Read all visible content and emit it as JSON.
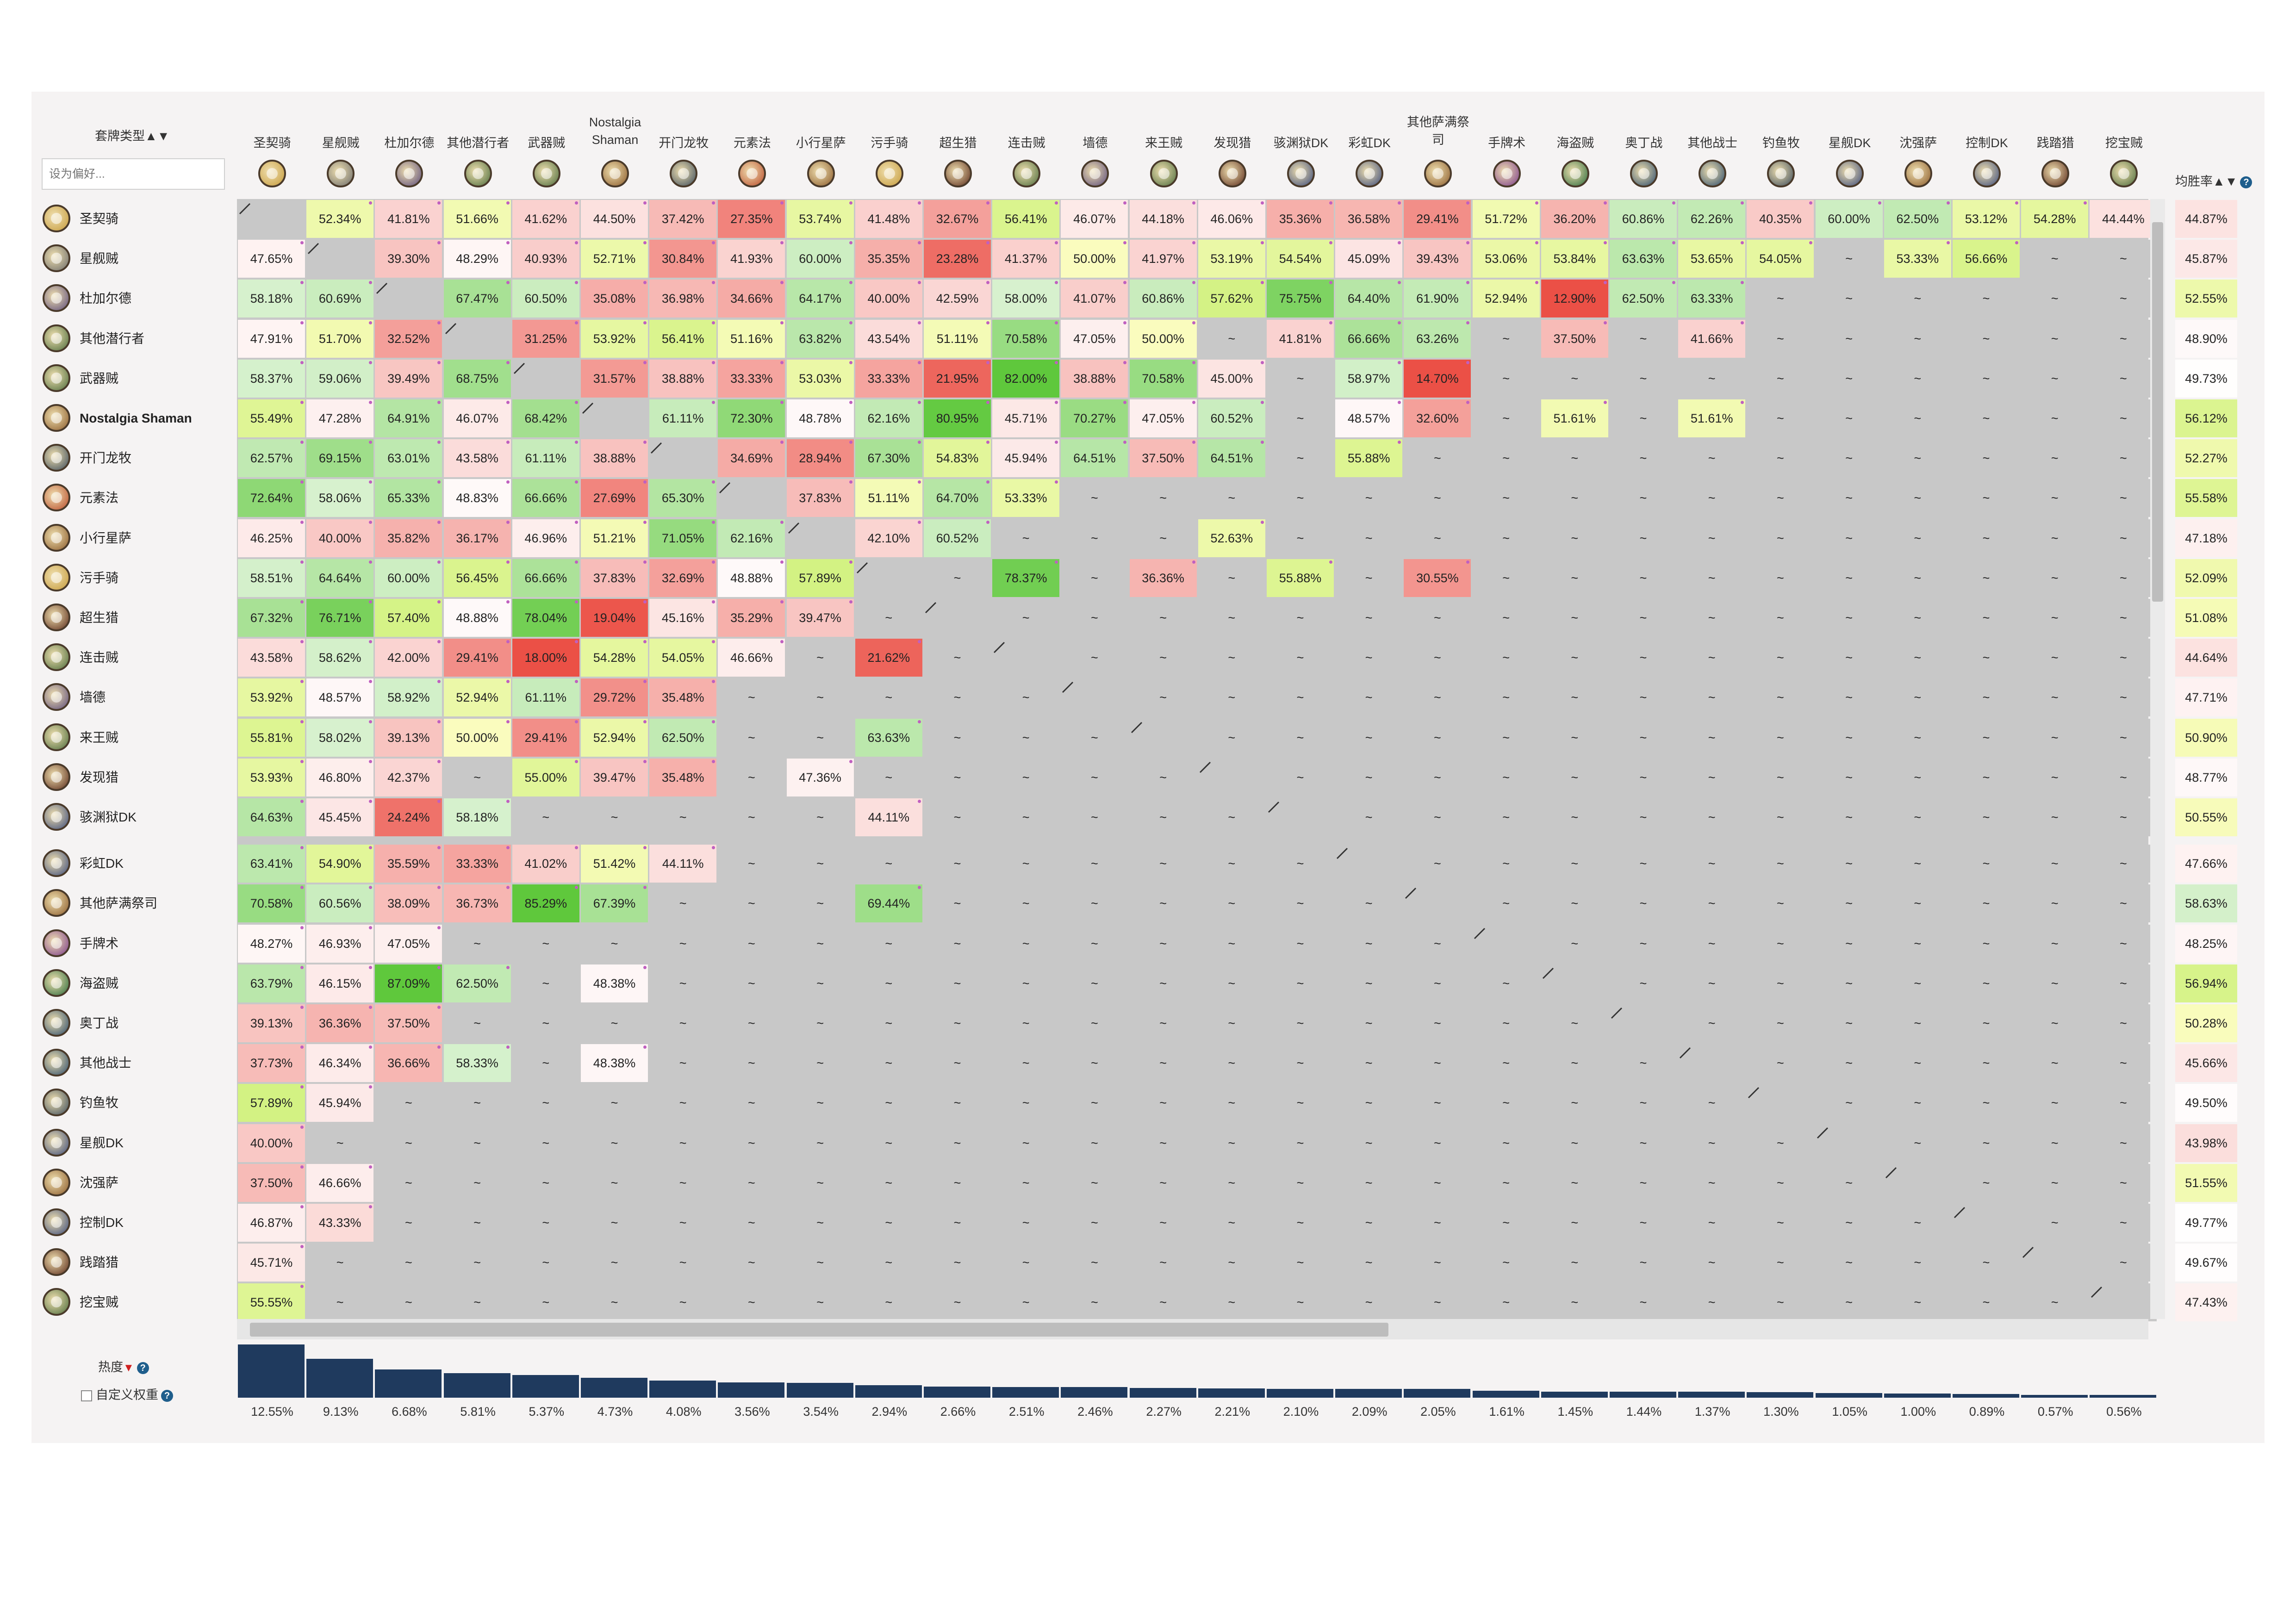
{
  "controls": {
    "deck_type_label": "套牌类型",
    "sort_arrows": "▲▼",
    "search_placeholder": "设为偏好...",
    "winrate_label": "均胜率",
    "popularity_label": "热度",
    "custom_weight_label": "自定义权重"
  },
  "columns": [
    {
      "name": "圣契骑",
      "icon": "paladin-icon",
      "color": "#c59a3a"
    },
    {
      "name": "星舰贼",
      "icon": "rogue-icon",
      "color": "#6a6a6a"
    },
    {
      "name": "杜加尔德",
      "icon": "demonhunter-icon",
      "color": "#5a4a7a"
    },
    {
      "name": "其他潜行者",
      "icon": "rogue-icon",
      "color": "#4a6a3a"
    },
    {
      "name": "武器贼",
      "icon": "rogue-icon",
      "color": "#4a6a3a"
    },
    {
      "name": "Nostalgia\nShaman",
      "icon": "shaman-icon",
      "color": "#8a5a2a"
    },
    {
      "name": "开门龙牧",
      "icon": "priest-icon",
      "color": "#3a4a5a"
    },
    {
      "name": "元素法",
      "icon": "mage-icon",
      "color": "#b84a2a"
    },
    {
      "name": "小行星萨",
      "icon": "shaman-icon",
      "color": "#8a5a2a"
    },
    {
      "name": "污手骑",
      "icon": "paladin-icon",
      "color": "#c59a3a"
    },
    {
      "name": "超生猎",
      "icon": "hunter-icon",
      "color": "#5a2a1a"
    },
    {
      "name": "连击贼",
      "icon": "rogue-icon",
      "color": "#4a6a3a"
    },
    {
      "name": "墙德",
      "icon": "druid-icon",
      "color": "#5a4a7a"
    },
    {
      "name": "来王贼",
      "icon": "rogue-icon",
      "color": "#4a6a3a"
    },
    {
      "name": "发现猎",
      "icon": "hunter-icon",
      "color": "#5a2a1a"
    },
    {
      "name": "骇渊狱DK",
      "icon": "deathknight-icon",
      "color": "#3a4a7a"
    },
    {
      "name": "彩虹DK",
      "icon": "deathknight-icon",
      "color": "#3a4a7a"
    },
    {
      "name": "其他萨满祭\n司",
      "icon": "shaman-icon",
      "color": "#8a5a2a"
    },
    {
      "name": "手牌术",
      "icon": "warlock-icon",
      "color": "#7a3a8a"
    },
    {
      "name": "海盗贼",
      "icon": "rogue-icon",
      "color": "#2a6a3a"
    },
    {
      "name": "奥丁战",
      "icon": "warrior-icon",
      "color": "#2a4a6a"
    },
    {
      "name": "其他战士",
      "icon": "warrior-icon",
      "color": "#2a4a6a"
    },
    {
      "name": "钓鱼牧",
      "icon": "priest-icon",
      "color": "#3a4a5a"
    },
    {
      "name": "星舰DK",
      "icon": "deathknight-icon",
      "color": "#3a4a7a"
    },
    {
      "name": "沈强萨",
      "icon": "shaman-icon",
      "color": "#8a5a2a"
    },
    {
      "name": "控制DK",
      "icon": "deathknight-icon",
      "color": "#3a4a7a"
    },
    {
      "name": "践踏猎",
      "icon": "hunter-icon",
      "color": "#5a2a1a"
    },
    {
      "name": "挖宝贼",
      "icon": "rogue-icon",
      "color": "#4a6a3a"
    }
  ],
  "rows": [
    {
      "name": "圣契骑",
      "winrate": "44.87%",
      "cells": [
        "/",
        "52.34%",
        "41.81%",
        "51.66%",
        "41.62%",
        "44.50%",
        "37.42%",
        "27.35%",
        "53.74%",
        "41.48%",
        "32.67%",
        "56.41%",
        "46.07%",
        "44.18%",
        "46.06%",
        "35.36%",
        "36.58%",
        "29.41%",
        "51.72%",
        "36.20%",
        "60.86%",
        "62.26%",
        "40.35%",
        "60.00%",
        "62.50%",
        "53.12%",
        "54.28%",
        "44.44%"
      ]
    },
    {
      "name": "星舰贼",
      "winrate": "45.87%",
      "cells": [
        "47.65%",
        "/",
        "39.30%",
        "48.29%",
        "40.93%",
        "52.71%",
        "30.84%",
        "41.93%",
        "60.00%",
        "35.35%",
        "23.28%",
        "41.37%",
        "50.00%",
        "41.97%",
        "53.19%",
        "54.54%",
        "45.09%",
        "39.43%",
        "53.06%",
        "53.84%",
        "63.63%",
        "53.65%",
        "54.05%",
        "~",
        "53.33%",
        "56.66%",
        "~",
        "~"
      ]
    },
    {
      "name": "杜加尔德",
      "winrate": "52.55%",
      "cells": [
        "58.18%",
        "60.69%",
        "/",
        "67.47%",
        "60.50%",
        "35.08%",
        "36.98%",
        "34.66%",
        "64.17%",
        "40.00%",
        "42.59%",
        "58.00%",
        "41.07%",
        "60.86%",
        "57.62%",
        "75.75%",
        "64.40%",
        "61.90%",
        "52.94%",
        "12.90%",
        "62.50%",
        "63.33%",
        "~",
        "~",
        "~",
        "~",
        "~",
        "~"
      ]
    },
    {
      "name": "其他潜行者",
      "winrate": "48.90%",
      "cells": [
        "47.91%",
        "51.70%",
        "32.52%",
        "/",
        "31.25%",
        "53.92%",
        "56.41%",
        "51.16%",
        "63.82%",
        "43.54%",
        "51.11%",
        "70.58%",
        "47.05%",
        "50.00%",
        "~",
        "41.81%",
        "66.66%",
        "63.26%",
        "~",
        "37.50%",
        "~",
        "41.66%",
        "~",
        "~",
        "~",
        "~",
        "~",
        "~"
      ]
    },
    {
      "name": "武器贼",
      "winrate": "49.73%",
      "cells": [
        "58.37%",
        "59.06%",
        "39.49%",
        "68.75%",
        "/",
        "31.57%",
        "38.88%",
        "33.33%",
        "53.03%",
        "33.33%",
        "21.95%",
        "82.00%",
        "38.88%",
        "70.58%",
        "45.00%",
        "~",
        "58.97%",
        "14.70%",
        "~",
        "~",
        "~",
        "~",
        "~",
        "~",
        "~",
        "~",
        "~",
        "~"
      ]
    },
    {
      "name": "Nostalgia Shaman",
      "winrate": "56.12%",
      "cells": [
        "55.49%",
        "47.28%",
        "64.91%",
        "46.07%",
        "68.42%",
        "/",
        "61.11%",
        "72.30%",
        "48.78%",
        "62.16%",
        "80.95%",
        "45.71%",
        "70.27%",
        "47.05%",
        "60.52%",
        "~",
        "48.57%",
        "32.60%",
        "~",
        "51.61%",
        "~",
        "51.61%",
        "~",
        "~",
        "~",
        "~",
        "~",
        "~"
      ]
    },
    {
      "name": "开门龙牧",
      "winrate": "52.27%",
      "cells": [
        "62.57%",
        "69.15%",
        "63.01%",
        "43.58%",
        "61.11%",
        "38.88%",
        "/",
        "34.69%",
        "28.94%",
        "67.30%",
        "54.83%",
        "45.94%",
        "64.51%",
        "37.50%",
        "64.51%",
        "~",
        "55.88%",
        "~",
        "~",
        "~",
        "~",
        "~",
        "~",
        "~",
        "~",
        "~",
        "~",
        "~"
      ]
    },
    {
      "name": "元素法",
      "winrate": "55.58%",
      "cells": [
        "72.64%",
        "58.06%",
        "65.33%",
        "48.83%",
        "66.66%",
        "27.69%",
        "65.30%",
        "/",
        "37.83%",
        "51.11%",
        "64.70%",
        "53.33%",
        "~",
        "~",
        "~",
        "~",
        "~",
        "~",
        "~",
        "~",
        "~",
        "~",
        "~",
        "~",
        "~",
        "~",
        "~",
        "~"
      ]
    },
    {
      "name": "小行星萨",
      "winrate": "47.18%",
      "cells": [
        "46.25%",
        "40.00%",
        "35.82%",
        "36.17%",
        "46.96%",
        "51.21%",
        "71.05%",
        "62.16%",
        "/",
        "42.10%",
        "60.52%",
        "~",
        "~",
        "~",
        "52.63%",
        "~",
        "~",
        "~",
        "~",
        "~",
        "~",
        "~",
        "~",
        "~",
        "~",
        "~",
        "~",
        "~"
      ]
    },
    {
      "name": "污手骑",
      "winrate": "52.09%",
      "cells": [
        "58.51%",
        "64.64%",
        "60.00%",
        "56.45%",
        "66.66%",
        "37.83%",
        "32.69%",
        "48.88%",
        "57.89%",
        "/",
        "~",
        "78.37%",
        "~",
        "36.36%",
        "~",
        "55.88%",
        "~",
        "30.55%",
        "~",
        "~",
        "~",
        "~",
        "~",
        "~",
        "~",
        "~",
        "~",
        "~"
      ]
    },
    {
      "name": "超生猎",
      "winrate": "51.08%",
      "cells": [
        "67.32%",
        "76.71%",
        "57.40%",
        "48.88%",
        "78.04%",
        "19.04%",
        "45.16%",
        "35.29%",
        "39.47%",
        "~",
        "/",
        "~",
        "~",
        "~",
        "~",
        "~",
        "~",
        "~",
        "~",
        "~",
        "~",
        "~",
        "~",
        "~",
        "~",
        "~",
        "~",
        "~"
      ]
    },
    {
      "name": "连击贼",
      "winrate": "44.64%",
      "cells": [
        "43.58%",
        "58.62%",
        "42.00%",
        "29.41%",
        "18.00%",
        "54.28%",
        "54.05%",
        "46.66%",
        "~",
        "21.62%",
        "~",
        "/",
        "~",
        "~",
        "~",
        "~",
        "~",
        "~",
        "~",
        "~",
        "~",
        "~",
        "~",
        "~",
        "~",
        "~",
        "~",
        "~"
      ]
    },
    {
      "name": "墙德",
      "winrate": "47.71%",
      "cells": [
        "53.92%",
        "48.57%",
        "58.92%",
        "52.94%",
        "61.11%",
        "29.72%",
        "35.48%",
        "~",
        "~",
        "~",
        "~",
        "~",
        "/",
        "~",
        "~",
        "~",
        "~",
        "~",
        "~",
        "~",
        "~",
        "~",
        "~",
        "~",
        "~",
        "~",
        "~",
        "~"
      ]
    },
    {
      "name": "来王贼",
      "winrate": "50.90%",
      "cells": [
        "55.81%",
        "58.02%",
        "39.13%",
        "50.00%",
        "29.41%",
        "52.94%",
        "62.50%",
        "~",
        "~",
        "63.63%",
        "~",
        "~",
        "~",
        "/",
        "~",
        "~",
        "~",
        "~",
        "~",
        "~",
        "~",
        "~",
        "~",
        "~",
        "~",
        "~",
        "~",
        "~"
      ]
    },
    {
      "name": "发现猎",
      "winrate": "48.77%",
      "cells": [
        "53.93%",
        "46.80%",
        "42.37%",
        "~",
        "55.00%",
        "39.47%",
        "35.48%",
        "~",
        "47.36%",
        "~",
        "~",
        "~",
        "~",
        "~",
        "/",
        "~",
        "~",
        "~",
        "~",
        "~",
        "~",
        "~",
        "~",
        "~",
        "~",
        "~",
        "~",
        "~"
      ]
    },
    {
      "name": "骇渊狱DK",
      "winrate": "50.55%",
      "cells": [
        "64.63%",
        "45.45%",
        "24.24%",
        "58.18%",
        "~",
        "~",
        "~",
        "~",
        "~",
        "44.11%",
        "~",
        "~",
        "~",
        "~",
        "~",
        "/",
        "~",
        "~",
        "~",
        "~",
        "~",
        "~",
        "~",
        "~",
        "~",
        "~",
        "~",
        "~"
      ]
    },
    {
      "name": "彩虹DK",
      "winrate": "47.66%",
      "cells": [
        "63.41%",
        "54.90%",
        "35.59%",
        "33.33%",
        "41.02%",
        "51.42%",
        "44.11%",
        "~",
        "~",
        "~",
        "~",
        "~",
        "~",
        "~",
        "~",
        "~",
        "/",
        "~",
        "~",
        "~",
        "~",
        "~",
        "~",
        "~",
        "~",
        "~",
        "~",
        "~"
      ]
    },
    {
      "name": "其他萨满祭司",
      "winrate": "58.63%",
      "cells": [
        "70.58%",
        "60.56%",
        "38.09%",
        "36.73%",
        "85.29%",
        "67.39%",
        "~",
        "~",
        "~",
        "69.44%",
        "~",
        "~",
        "~",
        "~",
        "~",
        "~",
        "~",
        "/",
        "~",
        "~",
        "~",
        "~",
        "~",
        "~",
        "~",
        "~",
        "~",
        "~"
      ]
    },
    {
      "name": "手牌术",
      "winrate": "48.25%",
      "cells": [
        "48.27%",
        "46.93%",
        "47.05%",
        "~",
        "~",
        "~",
        "~",
        "~",
        "~",
        "~",
        "~",
        "~",
        "~",
        "~",
        "~",
        "~",
        "~",
        "~",
        "/",
        "~",
        "~",
        "~",
        "~",
        "~",
        "~",
        "~",
        "~",
        "~"
      ]
    },
    {
      "name": "海盗贼",
      "winrate": "56.94%",
      "cells": [
        "63.79%",
        "46.15%",
        "87.09%",
        "62.50%",
        "~",
        "48.38%",
        "~",
        "~",
        "~",
        "~",
        "~",
        "~",
        "~",
        "~",
        "~",
        "~",
        "~",
        "~",
        "~",
        "/",
        "~",
        "~",
        "~",
        "~",
        "~",
        "~",
        "~",
        "~"
      ]
    },
    {
      "name": "奥丁战",
      "winrate": "50.28%",
      "cells": [
        "39.13%",
        "36.36%",
        "37.50%",
        "~",
        "~",
        "~",
        "~",
        "~",
        "~",
        "~",
        "~",
        "~",
        "~",
        "~",
        "~",
        "~",
        "~",
        "~",
        "~",
        "~",
        "/",
        "~",
        "~",
        "~",
        "~",
        "~",
        "~",
        "~"
      ]
    },
    {
      "name": "其他战士",
      "winrate": "45.66%",
      "cells": [
        "37.73%",
        "46.34%",
        "36.66%",
        "58.33%",
        "~",
        "48.38%",
        "~",
        "~",
        "~",
        "~",
        "~",
        "~",
        "~",
        "~",
        "~",
        "~",
        "~",
        "~",
        "~",
        "~",
        "~",
        "/",
        "~",
        "~",
        "~",
        "~",
        "~",
        "~"
      ]
    },
    {
      "name": "钓鱼牧",
      "winrate": "49.50%",
      "cells": [
        "57.89%",
        "45.94%",
        "~",
        "~",
        "~",
        "~",
        "~",
        "~",
        "~",
        "~",
        "~",
        "~",
        "~",
        "~",
        "~",
        "~",
        "~",
        "~",
        "~",
        "~",
        "~",
        "~",
        "/",
        "~",
        "~",
        "~",
        "~",
        "~"
      ]
    },
    {
      "name": "星舰DK",
      "winrate": "43.98%",
      "cells": [
        "40.00%",
        "~",
        "~",
        "~",
        "~",
        "~",
        "~",
        "~",
        "~",
        "~",
        "~",
        "~",
        "~",
        "~",
        "~",
        "~",
        "~",
        "~",
        "~",
        "~",
        "~",
        "~",
        "~",
        "/",
        "~",
        "~",
        "~",
        "~"
      ]
    },
    {
      "name": "沈强萨",
      "winrate": "51.55%",
      "cells": [
        "37.50%",
        "46.66%",
        "~",
        "~",
        "~",
        "~",
        "~",
        "~",
        "~",
        "~",
        "~",
        "~",
        "~",
        "~",
        "~",
        "~",
        "~",
        "~",
        "~",
        "~",
        "~",
        "~",
        "~",
        "~",
        "/",
        "~",
        "~",
        "~"
      ]
    },
    {
      "name": "控制DK",
      "winrate": "49.77%",
      "cells": [
        "46.87%",
        "43.33%",
        "~",
        "~",
        "~",
        "~",
        "~",
        "~",
        "~",
        "~",
        "~",
        "~",
        "~",
        "~",
        "~",
        "~",
        "~",
        "~",
        "~",
        "~",
        "~",
        "~",
        "~",
        "~",
        "~",
        "/",
        "~",
        "~"
      ]
    },
    {
      "name": "践踏猎",
      "winrate": "49.67%",
      "cells": [
        "45.71%",
        "~",
        "~",
        "~",
        "~",
        "~",
        "~",
        "~",
        "~",
        "~",
        "~",
        "~",
        "~",
        "~",
        "~",
        "~",
        "~",
        "~",
        "~",
        "~",
        "~",
        "~",
        "~",
        "~",
        "~",
        "~",
        "/",
        "~"
      ]
    },
    {
      "name": "挖宝贼",
      "winrate": "47.43%",
      "cells": [
        "55.55%",
        "~",
        "~",
        "~",
        "~",
        "~",
        "~",
        "~",
        "~",
        "~",
        "~",
        "~",
        "~",
        "~",
        "~",
        "~",
        "~",
        "~",
        "~",
        "~",
        "~",
        "~",
        "~",
        "~",
        "~",
        "~",
        "~",
        "/"
      ]
    }
  ],
  "popularity": [
    "12.55%",
    "9.13%",
    "6.68%",
    "5.81%",
    "5.37%",
    "4.73%",
    "4.08%",
    "3.56%",
    "3.54%",
    "2.94%",
    "2.66%",
    "2.51%",
    "2.46%",
    "2.27%",
    "2.21%",
    "2.10%",
    "2.09%",
    "2.05%",
    "1.61%",
    "1.45%",
    "1.44%",
    "1.37%",
    "1.30%",
    "1.05%",
    "1.00%",
    "0.89%",
    "0.57%",
    "0.56%"
  ],
  "colors": {
    "bar": "#1f3a5e",
    "empty_cell": "#c8c8c8",
    "high_win": "#5cc83a",
    "low_win": "#f06050",
    "neutral": "#ffffff"
  }
}
